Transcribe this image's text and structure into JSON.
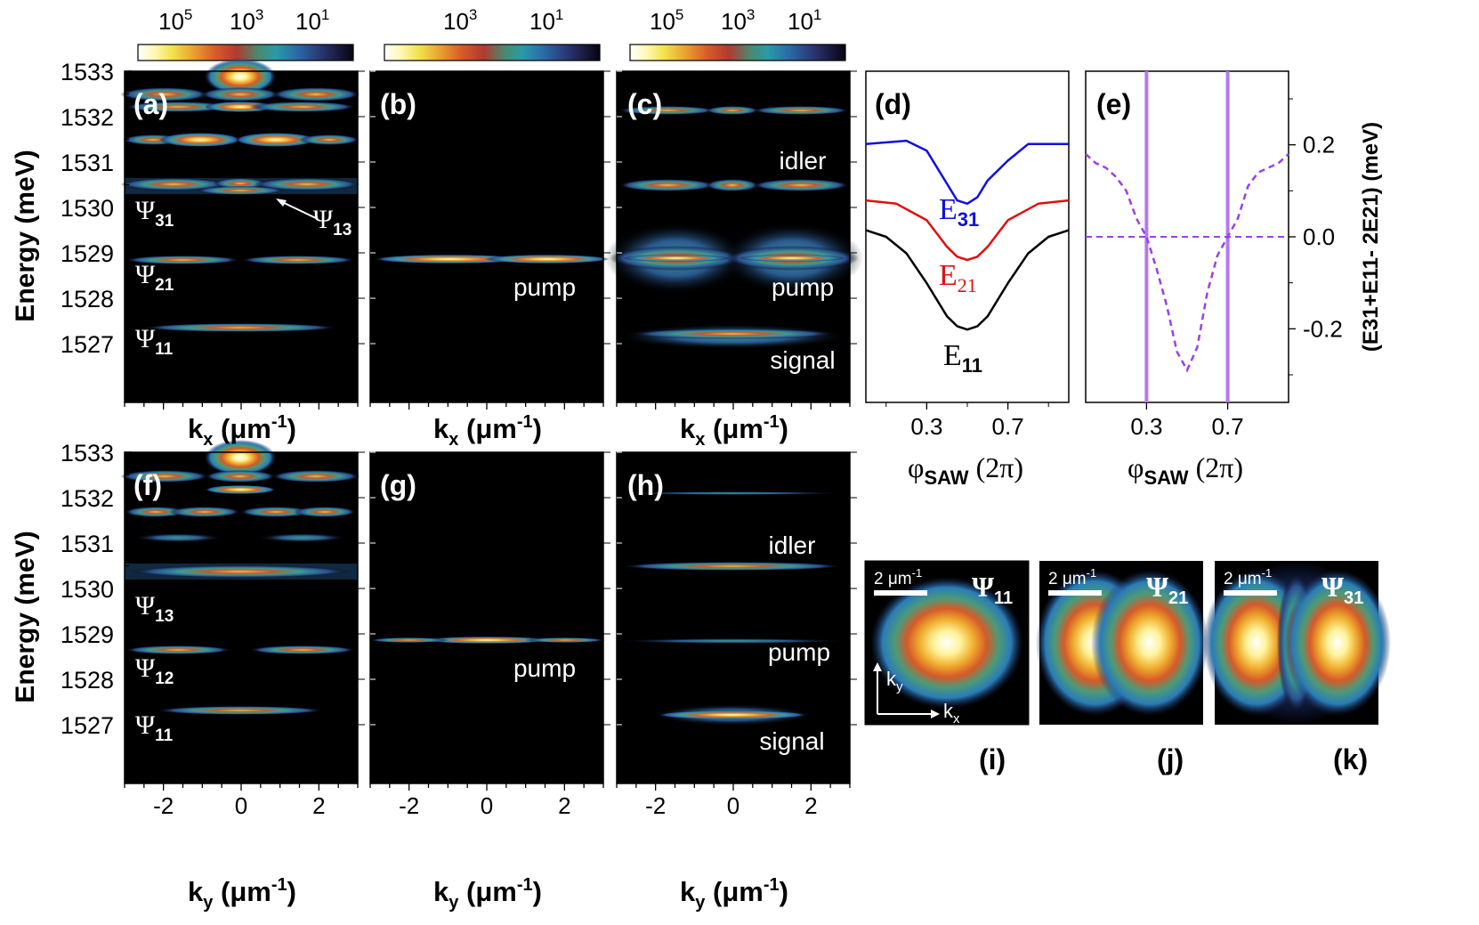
{
  "colorbars": [
    {
      "labels": [
        "10",
        "10",
        "10"
      ],
      "exponents": [
        "5",
        "3",
        "1"
      ]
    },
    {
      "labels": [
        "10",
        "10"
      ],
      "exponents": [
        "3",
        "1"
      ]
    },
    {
      "labels": [
        "10",
        "10",
        "10"
      ],
      "exponents": [
        "5",
        "3",
        "1"
      ]
    }
  ],
  "colormap": [
    "#ffffff",
    "#fff7b0",
    "#f2e24a",
    "#e8a030",
    "#d85a2a",
    "#b03a30",
    "#4a8a70",
    "#2a9aa8",
    "#2a6aa8",
    "#2a3a78",
    "#1a1a40",
    "#050510"
  ],
  "axes": {
    "energy_label": "Energy (meV)",
    "energy_ticks": [
      "1533",
      "1532",
      "1531",
      "1530",
      "1529",
      "1528",
      "1527"
    ],
    "kx_label": "k",
    "kx_sub": "x",
    "kx_unit": " (μm",
    "kx_exp": "-1",
    "kx_close": ")",
    "ky_label": "k",
    "ky_sub": "y",
    "ky_ticks": [
      "-2",
      "0",
      "2"
    ],
    "phi_label": "φ",
    "phi_sub": "SAW",
    "phi_unit": " (2π)",
    "phi_ticks": [
      "0.3",
      "0.7"
    ]
  },
  "panels": {
    "a": "(a)",
    "b": "(b)",
    "c": "(c)",
    "d": "(d)",
    "e": "(e)",
    "f": "(f)",
    "g": "(g)",
    "h": "(h)",
    "i": "(i)",
    "j": "(j)",
    "k": "(k)"
  },
  "mode_labels": {
    "psi": "Ψ",
    "a": [
      {
        "sub": "31"
      },
      {
        "sub": "13"
      },
      {
        "sub": "21"
      },
      {
        "sub": "11"
      }
    ],
    "f": [
      {
        "sub": "13"
      },
      {
        "sub": "12"
      },
      {
        "sub": "11"
      }
    ]
  },
  "process_labels": {
    "idler": "idler",
    "pump": "pump",
    "signal": "signal"
  },
  "chart_data": [
    {
      "type": "line",
      "panel": "d",
      "xlabel": "φSAW (2π)",
      "x_ticks": [
        0.3,
        0.7
      ],
      "xlim": [
        0.0,
        1.0
      ],
      "series": [
        {
          "name": "E31",
          "sub": "31",
          "color": "#1010e0",
          "x": [
            0.0,
            0.2,
            0.3,
            0.4,
            0.45,
            0.5,
            0.55,
            0.6,
            0.7,
            0.8,
            1.0
          ],
          "values": [
            0.78,
            0.79,
            0.76,
            0.66,
            0.61,
            0.6,
            0.62,
            0.67,
            0.73,
            0.78,
            0.78
          ]
        },
        {
          "name": "E21",
          "sub": "21",
          "color": "#e01010",
          "x": [
            0.0,
            0.15,
            0.3,
            0.4,
            0.45,
            0.5,
            0.55,
            0.6,
            0.7,
            0.85,
            1.0
          ],
          "values": [
            0.61,
            0.6,
            0.55,
            0.47,
            0.44,
            0.43,
            0.44,
            0.47,
            0.55,
            0.6,
            0.61
          ]
        },
        {
          "name": "E11",
          "sub": "11",
          "color": "#000000",
          "x": [
            0.0,
            0.1,
            0.2,
            0.3,
            0.4,
            0.45,
            0.5,
            0.55,
            0.6,
            0.7,
            0.8,
            0.9,
            1.0
          ],
          "values": [
            0.52,
            0.5,
            0.45,
            0.36,
            0.26,
            0.23,
            0.22,
            0.23,
            0.26,
            0.36,
            0.45,
            0.5,
            0.52
          ]
        }
      ],
      "labels": {
        "E": "E"
      }
    },
    {
      "type": "line",
      "panel": "e",
      "ylabel": "(E31+E11- 2E21) (meV)",
      "y_ticks": [
        "0.2",
        "0.0",
        "-0.2"
      ],
      "y_tick_values": [
        0.2,
        0.0,
        -0.2
      ],
      "ylim": [
        -0.36,
        0.36
      ],
      "xlim": [
        0.0,
        1.0
      ],
      "x_ticks": [
        0.3,
        0.7
      ],
      "vlines": [
        0.3,
        0.7
      ],
      "hline": 0.0,
      "series": [
        {
          "name": "E31+E11-2E21",
          "color": "#9a40e8",
          "dashed": true,
          "x": [
            0.0,
            0.05,
            0.1,
            0.15,
            0.2,
            0.25,
            0.3,
            0.35,
            0.4,
            0.45,
            0.5,
            0.55,
            0.6,
            0.65,
            0.7,
            0.75,
            0.8,
            0.85,
            0.9,
            0.95,
            1.0
          ],
          "values": [
            0.18,
            0.16,
            0.15,
            0.13,
            0.1,
            0.04,
            0.0,
            -0.07,
            -0.15,
            -0.25,
            -0.29,
            -0.24,
            -0.12,
            -0.04,
            0.0,
            0.04,
            0.11,
            0.14,
            0.15,
            0.16,
            0.18
          ]
        }
      ]
    }
  ],
  "insets": {
    "scale": "2 μm",
    "scale_exp": "-1",
    "ky": "k",
    "ky_sub": "y",
    "kx": "k",
    "kx_sub": "x",
    "modes": [
      "11",
      "21",
      "31"
    ]
  }
}
